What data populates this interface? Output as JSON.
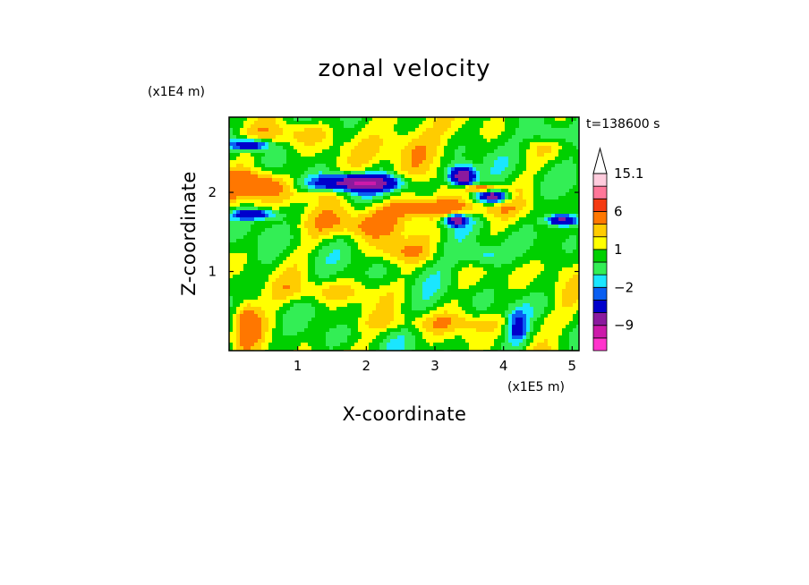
{
  "chart_data": {
    "type": "heatmap",
    "title": "zonal velocity",
    "xlabel": "X-coordinate",
    "ylabel": "Z-coordinate",
    "x_unit": "(x1E5 m)",
    "y_unit": "(x1E4 m)",
    "time_label": "t=138600 s",
    "xlim": [
      0.0,
      5.1
    ],
    "ylim": [
      0.0,
      2.95
    ],
    "x_ticks": [
      {
        "value": 1,
        "label": "1"
      },
      {
        "value": 2,
        "label": "2"
      },
      {
        "value": 3,
        "label": "3"
      },
      {
        "value": 4,
        "label": "4"
      },
      {
        "value": 5,
        "label": "5"
      }
    ],
    "y_ticks": [
      {
        "value": 1,
        "label": "1"
      },
      {
        "value": 2,
        "label": "2"
      }
    ],
    "colorbar": {
      "levels": [
        -16,
        -12,
        -9,
        -6,
        -3,
        -2,
        -1,
        0,
        1,
        2,
        3,
        6,
        9,
        12,
        15.1
      ],
      "colors": [
        "#ff33cc",
        "#cc1aaa",
        "#8b1a9e",
        "#0000cc",
        "#0a5ff2",
        "#1ae6ff",
        "#33ee55",
        "#00d000",
        "#ffff00",
        "#ffcc00",
        "#ff7700",
        "#f53a12",
        "#ff7799",
        "#ffccdd"
      ],
      "labels": [
        {
          "value": 15.1,
          "label": "15.1"
        },
        {
          "value": 6,
          "label": "6"
        },
        {
          "value": 1,
          "label": "1"
        },
        {
          "value": -2,
          "label": "−2"
        },
        {
          "value": -9,
          "label": "−9"
        }
      ],
      "extend_max": true
    },
    "features": [
      {
        "cx": 0.3,
        "cz": 2.6,
        "a": 0.25,
        "b": 0.07,
        "value": -7
      },
      {
        "cx": 0.35,
        "cz": 1.72,
        "a": 0.3,
        "b": 0.06,
        "value": -6
      },
      {
        "cx": 1.9,
        "cz": 2.12,
        "a": 0.55,
        "b": 0.1,
        "value": -10
      },
      {
        "cx": 3.4,
        "cz": 2.2,
        "a": 0.18,
        "b": 0.12,
        "value": -10
      },
      {
        "cx": 3.85,
        "cz": 1.95,
        "a": 0.2,
        "b": 0.08,
        "value": -8
      },
      {
        "cx": 3.3,
        "cz": 1.65,
        "a": 0.15,
        "b": 0.07,
        "value": -8
      },
      {
        "cx": 4.85,
        "cz": 1.65,
        "a": 0.2,
        "b": 0.07,
        "value": -8
      },
      {
        "cx": 0.35,
        "cz": 2.1,
        "a": 0.5,
        "b": 0.18,
        "value": 5
      },
      {
        "cx": 3.0,
        "cz": 1.8,
        "a": 0.9,
        "b": 0.12,
        "value": 4
      },
      {
        "cx": 2.0,
        "cz": 1.6,
        "a": 0.7,
        "b": 0.18,
        "value": 3
      },
      {
        "cx": 2.6,
        "cz": 2.6,
        "a": 0.5,
        "b": 0.3,
        "value": 3
      },
      {
        "cx": 3.7,
        "cz": 2.05,
        "a": 0.3,
        "b": 0.05,
        "value": 5
      },
      {
        "cx": 1.0,
        "cz": 2.75,
        "a": 0.5,
        "b": 0.15,
        "value": 2
      },
      {
        "cx": 4.7,
        "cz": 2.75,
        "a": 0.3,
        "b": 0.12,
        "value": -3
      },
      {
        "cx": 1.4,
        "cz": 0.75,
        "a": 0.8,
        "b": 0.14,
        "value": 1.5
      },
      {
        "cx": 3.2,
        "cz": 0.35,
        "a": 1.6,
        "b": 0.12,
        "value": 1.5
      },
      {
        "cx": 4.8,
        "cz": 1.1,
        "a": 0.3,
        "b": 0.25,
        "value": 1.5
      },
      {
        "cx": 3.7,
        "cz": 1.2,
        "a": 0.3,
        "b": 0.15,
        "value": -3
      },
      {
        "cx": 0.25,
        "cz": 0.4,
        "a": 0.2,
        "b": 0.3,
        "value": 4
      },
      {
        "cx": 4.2,
        "cz": 0.3,
        "a": 0.15,
        "b": 0.2,
        "value": -4
      },
      {
        "cx": 2.5,
        "cz": 1.25,
        "a": 0.4,
        "b": 0.15,
        "value": 2
      },
      {
        "cx": 1.2,
        "cz": 1.95,
        "a": 0.4,
        "b": 0.08,
        "value": 1.5
      }
    ]
  }
}
